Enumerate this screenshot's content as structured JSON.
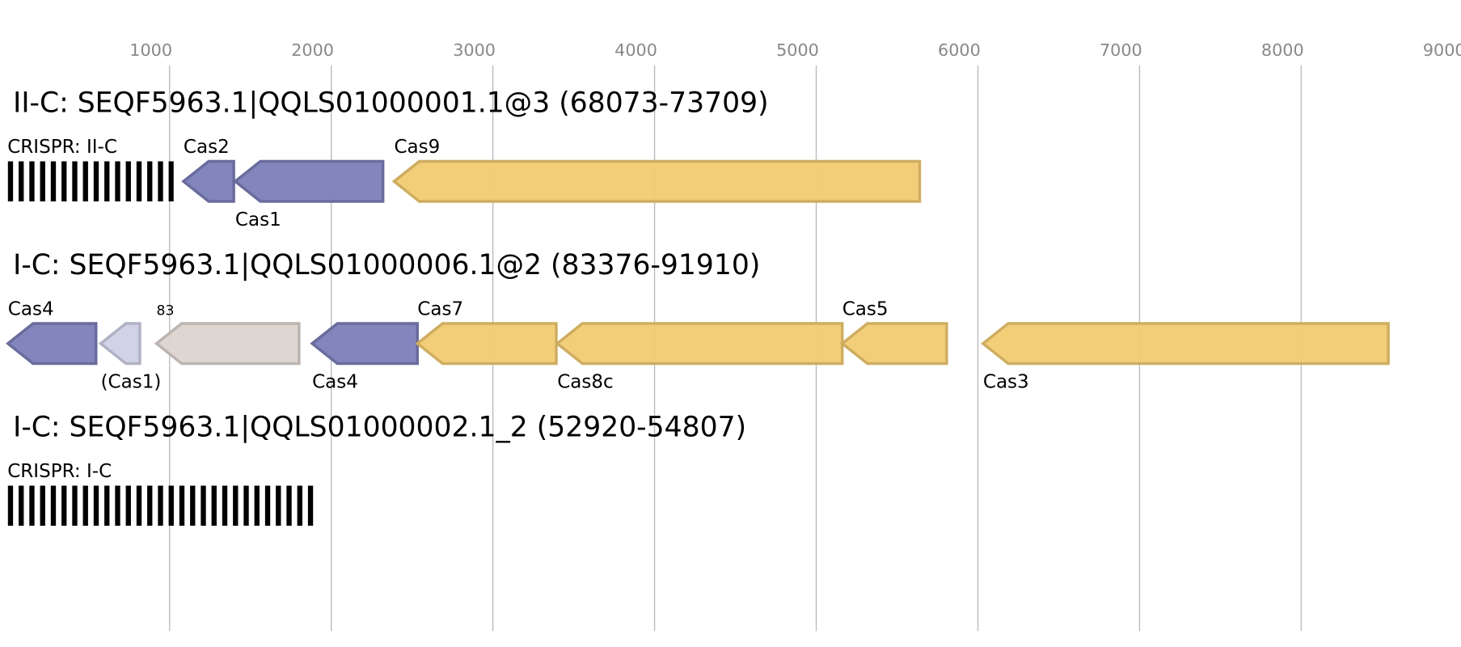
{
  "axis": {
    "xlim": [
      0,
      9000
    ],
    "xticks": [
      1000,
      2000,
      3000,
      4000,
      5000,
      6000,
      7000,
      8000,
      9000
    ]
  },
  "tracks": [
    {
      "title": "II-C: SEQF5963.1|QQLS01000001.1@3 (68073-73709)",
      "crispr": {
        "label": "CRISPR: II-C",
        "start": 0,
        "end": 1025
      },
      "genes": [
        {
          "label": "Cas2",
          "start": 1086,
          "end": 1397,
          "color": "#7b7fb8",
          "label_pos": "above"
        },
        {
          "label": "Cas1",
          "start": 1406,
          "end": 2320,
          "color": "#7b7fb8",
          "label_pos": "below"
        },
        {
          "label": "Cas9",
          "start": 2389,
          "end": 5640,
          "color": "#f2cb72",
          "label_pos": "above"
        }
      ]
    },
    {
      "title": "I-C: SEQF5963.1|QQLS01000006.1@2 (83376-91910)",
      "genes": [
        {
          "label": "Cas4",
          "start": 0,
          "end": 545,
          "color": "#7b7fb8",
          "label_pos": "above"
        },
        {
          "label": "(Cas1)",
          "start": 574,
          "end": 816,
          "color": "#d0d0e6",
          "label_pos": "below"
        },
        {
          "label": "83",
          "start": 919,
          "end": 1801,
          "color": "#dcd4cf",
          "label_pos": "above-small"
        },
        {
          "label": "Cas4",
          "start": 1882,
          "end": 2533,
          "color": "#7b7fb8",
          "label_pos": "below"
        },
        {
          "label": "Cas7",
          "start": 2533,
          "end": 3392,
          "color": "#f2cb72",
          "label_pos": "above"
        },
        {
          "label": "Cas8c",
          "start": 3398,
          "end": 5161,
          "color": "#f2cb72",
          "label_pos": "below"
        },
        {
          "label": "Cas5",
          "start": 5161,
          "end": 5807,
          "color": "#f2cb72",
          "label_pos": "above"
        },
        {
          "label": "Cas3",
          "start": 6032,
          "end": 8539,
          "color": "#f2cb72",
          "label_pos": "below"
        }
      ]
    },
    {
      "title": "I-C: SEQF5963.1|QQLS01000002.1_2 (52920-54807)",
      "crispr": {
        "label": "CRISPR: I-C",
        "start": 0,
        "end": 1888
      },
      "genes": []
    }
  ]
}
